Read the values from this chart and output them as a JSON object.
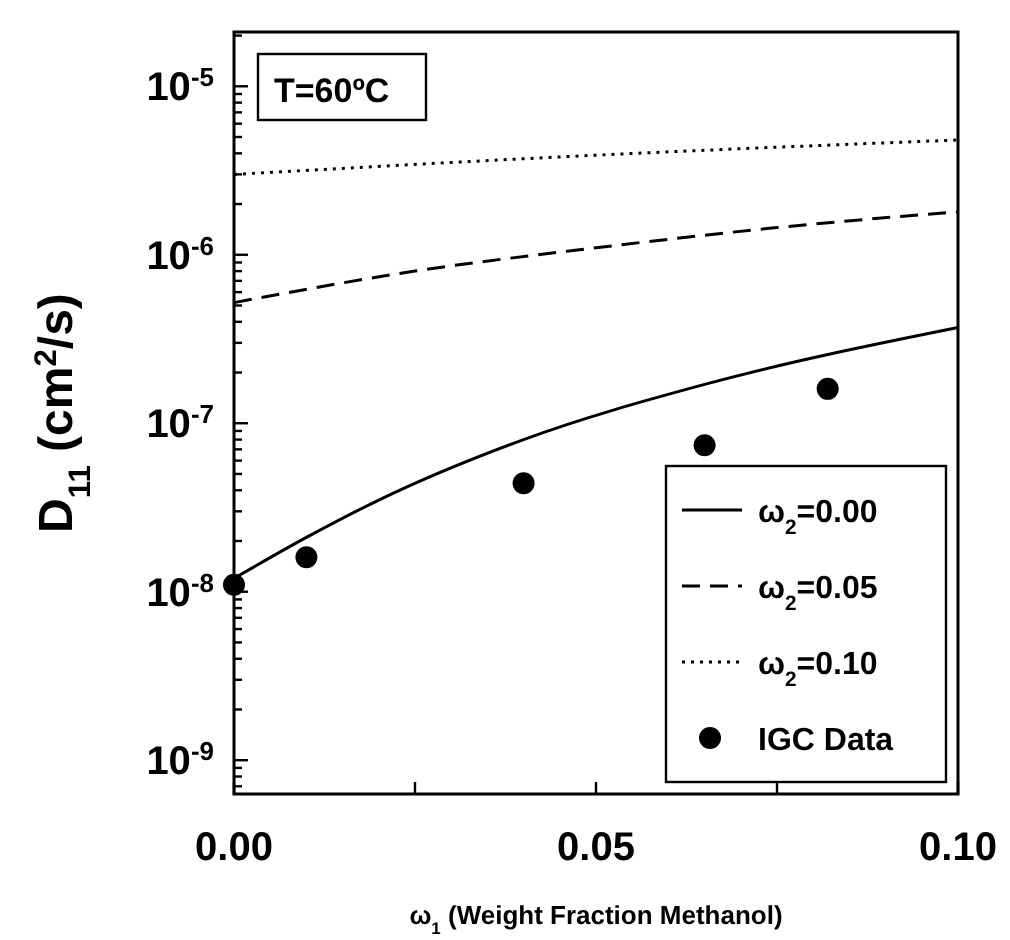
{
  "chart_data": {
    "type": "line",
    "xlabel": "ω$_{1}$ (Weight Fraction Methanol)",
    "ylabel": "D$_{11}$ (cm$^{2}$/s)",
    "annotations": [
      "T=60ºC"
    ],
    "log": "y",
    "xlim": [
      0,
      0.1
    ],
    "ylim": [
      6.3e-10,
      2.1e-05
    ],
    "xticks": [
      {
        "value": 0,
        "label": "0.00"
      },
      {
        "value": 0.025,
        "label": null
      },
      {
        "value": 0.05,
        "label": "0.05"
      },
      {
        "value": 0.075,
        "label": null
      },
      {
        "value": 0.1,
        "label": "0.10"
      }
    ],
    "yticks": [
      {
        "value": 7e-10,
        "label": null
      },
      {
        "value": 8e-10,
        "label": null
      },
      {
        "value": 9e-10,
        "label": null
      },
      {
        "value": 1e-09,
        "label": "10$^{-9}$"
      },
      {
        "value": 2e-09,
        "label": null
      },
      {
        "value": 3e-09,
        "label": null
      },
      {
        "value": 4e-09,
        "label": null
      },
      {
        "value": 5e-09,
        "label": null
      },
      {
        "value": 6e-09,
        "label": null
      },
      {
        "value": 7e-09,
        "label": null
      },
      {
        "value": 8e-09,
        "label": null
      },
      {
        "value": 9e-09,
        "label": null
      },
      {
        "value": 1e-08,
        "label": "10$^{-8}$"
      },
      {
        "value": 2e-08,
        "label": null
      },
      {
        "value": 3e-08,
        "label": null
      },
      {
        "value": 4e-08,
        "label": null
      },
      {
        "value": 5e-08,
        "label": null
      },
      {
        "value": 6e-08,
        "label": null
      },
      {
        "value": 7e-08,
        "label": null
      },
      {
        "value": 8e-08,
        "label": null
      },
      {
        "value": 9e-08,
        "label": null
      },
      {
        "value": 1e-07,
        "label": "10$^{-7}$"
      },
      {
        "value": 2e-07,
        "label": null
      },
      {
        "value": 3e-07,
        "label": null
      },
      {
        "value": 4e-07,
        "label": null
      },
      {
        "value": 5e-07,
        "label": null
      },
      {
        "value": 6e-07,
        "label": null
      },
      {
        "value": 7e-07,
        "label": null
      },
      {
        "value": 8e-07,
        "label": null
      },
      {
        "value": 9e-07,
        "label": null
      },
      {
        "value": 1e-06,
        "label": "10$^{-6}$"
      },
      {
        "value": 2e-06,
        "label": null
      },
      {
        "value": 3e-06,
        "label": null
      },
      {
        "value": 4e-06,
        "label": null
      },
      {
        "value": 5e-06,
        "label": null
      },
      {
        "value": 6e-06,
        "label": null
      },
      {
        "value": 7e-06,
        "label": null
      },
      {
        "value": 8e-06,
        "label": null
      },
      {
        "value": 9e-06,
        "label": null
      },
      {
        "value": 1e-05,
        "label": "10$^{-5}$"
      },
      {
        "value": 2e-05,
        "label": null
      }
    ],
    "legend": "bottom right",
    "grid": false,
    "series": [
      {
        "name": "ω$_{2}$=0.00",
        "line_style": "solid",
        "color": "#000000",
        "x": [
          0,
          0.01,
          0.02,
          0.04,
          0.065,
          0.1
        ],
        "values": [
          1.2e-08,
          2.1e-08,
          3.5e-08,
          8e-08,
          1.7e-07,
          3.7e-07
        ]
      },
      {
        "name": "ω$_{2}$=0.05",
        "line_style": "dashed",
        "color": "#000000",
        "x": [
          0,
          0.025,
          0.05,
          0.075,
          0.1
        ],
        "values": [
          5.2e-07,
          8e-07,
          1.1e-06,
          1.45e-06,
          1.8e-06
        ]
      },
      {
        "name": "ω$_{2}$=0.10",
        "line_style": "dotted",
        "color": "#000000",
        "x": [
          0,
          0.05,
          0.1
        ],
        "values": [
          3e-06,
          3.9e-06,
          4.8e-06
        ]
      },
      {
        "name": "IGC Data",
        "type": "scatter",
        "marker": "circle",
        "color": "#000000",
        "x": [
          0,
          0.01,
          0.04,
          0.065,
          0.082
        ],
        "values": [
          1.1e-08,
          1.6e-08,
          4.4e-08,
          7.4e-08,
          1.6e-07
        ]
      }
    ]
  }
}
